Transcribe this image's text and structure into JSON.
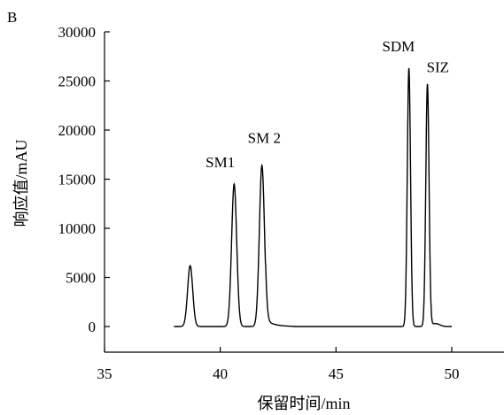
{
  "panel_label": "B",
  "chart_data": {
    "type": "line",
    "title": "",
    "xlabel": "保留时间/min",
    "ylabel": "响应值/mAU",
    "xlim": [
      35,
      52.2
    ],
    "ylim": [
      -2500,
      30000
    ],
    "xticks": [
      35,
      40,
      45,
      50
    ],
    "yticks": [
      0,
      5000,
      10000,
      15000,
      20000,
      25000,
      30000
    ],
    "grid": false,
    "baseline": 0,
    "series": [
      {
        "x_range": [
          38.0,
          50.0
        ],
        "peaks": [
          {
            "label": "",
            "x": 38.7,
            "y": 6200,
            "width": 0.11
          },
          {
            "label": "SM1",
            "x": 40.6,
            "y": 14500,
            "width": 0.11
          },
          {
            "label": "SM 2",
            "x": 41.8,
            "y": 16400,
            "width": 0.11
          },
          {
            "label": "SDM",
            "x": 48.15,
            "y": 26300,
            "width": 0.07
          },
          {
            "label": "SIZ",
            "x": 48.95,
            "y": 24700,
            "width": 0.07
          }
        ]
      }
    ],
    "peak_labels": [
      {
        "text": "SM1",
        "x": 40.0,
        "y": 16200
      },
      {
        "text": "SM 2",
        "x": 41.9,
        "y": 18700
      },
      {
        "text": "SDM",
        "x": 47.7,
        "y": 28000
      },
      {
        "text": "SIZ",
        "x": 49.4,
        "y": 25900
      }
    ]
  }
}
